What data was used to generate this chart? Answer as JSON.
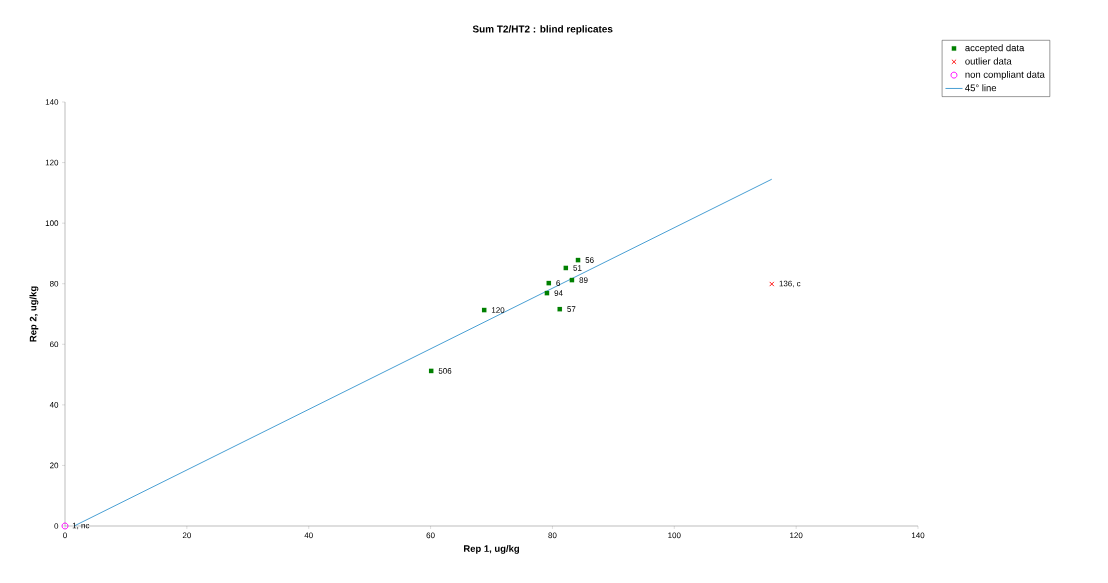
{
  "chart_data": {
    "type": "scatter",
    "title": "Sum T2/HT2 : blind replicates",
    "xlabel": "Rep 1,  ug/kg",
    "ylabel": "Rep 2,  ug/kg",
    "xlim": [
      0,
      140
    ],
    "ylim": [
      0,
      140
    ],
    "xticks": [
      0,
      20,
      40,
      60,
      80,
      100,
      120,
      140
    ],
    "yticks": [
      0,
      20,
      40,
      60,
      80,
      100,
      120,
      140
    ],
    "grid": false,
    "legend": "top right",
    "series": [
      {
        "name": "accepted data",
        "color": "#008000",
        "marker": "square",
        "x": [
          84.2,
          82.2,
          83.2,
          79.4,
          79.1,
          81.2,
          68.8,
          60.1
        ],
        "values": [
          87.8,
          85.2,
          81.2,
          80.2,
          76.9,
          71.6,
          71.3,
          51.2
        ]
      },
      {
        "name": "outlier data",
        "color": "#ff0000",
        "marker": "cross",
        "x": [
          116.0
        ],
        "values": [
          79.9
        ]
      },
      {
        "name": "non compliant data",
        "color": "#ff00ff",
        "marker": "circle",
        "x": [
          0
        ],
        "values": [
          0
        ]
      },
      {
        "name": "45° line",
        "type": "line",
        "color": "#1a86c8",
        "marker": "none",
        "line_style": "solid",
        "x": [
          1.5,
          116.0
        ],
        "values": [
          0,
          114.5
        ]
      }
    ],
    "annotations": [
      {
        "text": "56",
        "x": 84.2,
        "y": 87.8
      },
      {
        "text": "51",
        "x": 82.2,
        "y": 85.2
      },
      {
        "text": "89",
        "x": 83.2,
        "y": 81.2
      },
      {
        "text": "6",
        "x": 79.4,
        "y": 80.2
      },
      {
        "text": "94",
        "x": 79.1,
        "y": 76.9
      },
      {
        "text": "57",
        "x": 81.2,
        "y": 71.6
      },
      {
        "text": "120",
        "x": 68.8,
        "y": 71.3
      },
      {
        "text": "506",
        "x": 60.1,
        "y": 51.2
      },
      {
        "text": "136, c",
        "x": 116.0,
        "y": 79.9
      },
      {
        "text": "1, nc",
        "x": 0,
        "y": 0
      }
    ]
  }
}
